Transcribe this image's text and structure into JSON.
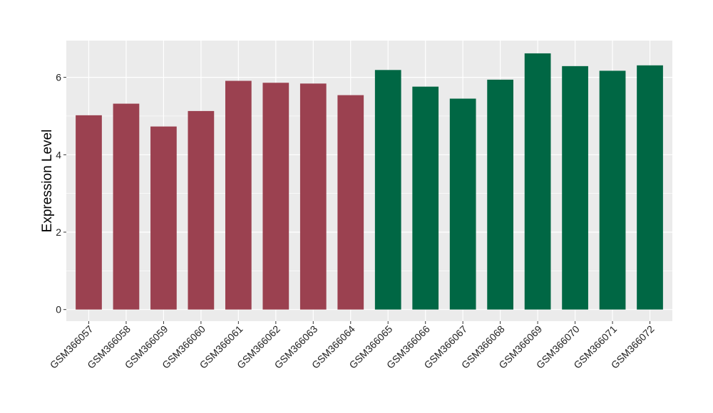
{
  "chart_data": {
    "type": "bar",
    "title": "",
    "xlabel": "",
    "ylabel": "Expression Level",
    "ylim": [
      -0.3,
      6.95
    ],
    "yticks": [
      0,
      2,
      4,
      6
    ],
    "grid": true,
    "legend": "none",
    "categories": [
      "GSM366057",
      "GSM366058",
      "GSM366059",
      "GSM366060",
      "GSM366061",
      "GSM366062",
      "GSM366063",
      "GSM366064",
      "GSM366065",
      "GSM366066",
      "GSM366067",
      "GSM366068",
      "GSM366069",
      "GSM366070",
      "GSM366071",
      "GSM366072"
    ],
    "values": [
      5.02,
      5.32,
      4.73,
      5.13,
      5.91,
      5.86,
      5.84,
      5.54,
      6.19,
      5.76,
      5.45,
      5.94,
      6.62,
      6.29,
      6.17,
      6.31
    ],
    "bar_colors": [
      "#9b4150",
      "#9b4150",
      "#9b4150",
      "#9b4150",
      "#9b4150",
      "#9b4150",
      "#9b4150",
      "#9b4150",
      "#006744",
      "#006744",
      "#006744",
      "#006744",
      "#006744",
      "#006744",
      "#006744",
      "#006744"
    ],
    "panel_background": "#ebebeb",
    "grid_color": "#ffffff"
  }
}
